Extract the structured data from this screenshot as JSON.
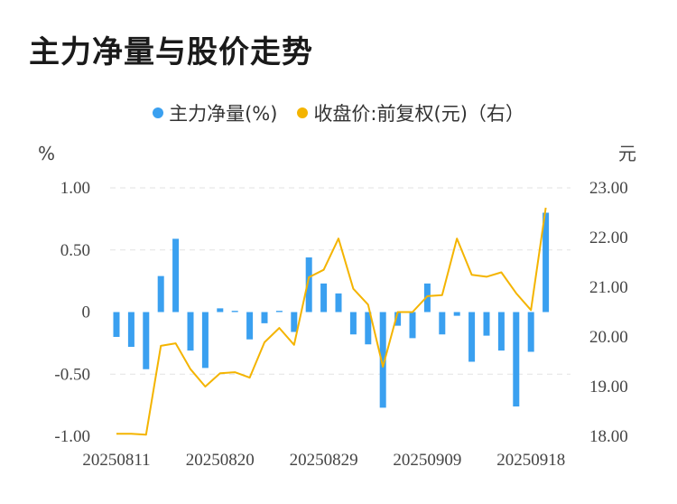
{
  "title": "主力净量与股价走势",
  "legend": {
    "series1": "主力净量(%)",
    "series2": "收盘价:前复权(元)（右）"
  },
  "colors": {
    "bar": "#3aa0f0",
    "line": "#f4b400",
    "grid": "#e2e2e2",
    "text": "#444444"
  },
  "chart_data": {
    "type": "bar+line",
    "title": "主力净量与股价走势",
    "y_left_unit": "%",
    "y_right_unit": "元",
    "y_left_ticks": [
      "1.00",
      "0.50",
      "0",
      "-0.50",
      "-1.00"
    ],
    "y_right_ticks": [
      "23.00",
      "22.00",
      "21.00",
      "20.00",
      "19.00",
      "18.00"
    ],
    "x_tick_labels": [
      "20250811",
      "20250820",
      "20250829",
      "20250909",
      "20250918"
    ],
    "x_tick_index": [
      0,
      7,
      14,
      21,
      28
    ],
    "ylim_left": [
      -1.0,
      1.0
    ],
    "ylim_right": [
      18.0,
      23.0
    ],
    "grid": true,
    "legend_position": "top",
    "series": [
      {
        "name": "主力净量(%)",
        "type": "bar",
        "axis": "left",
        "values": [
          -0.2,
          -0.28,
          -0.46,
          0.29,
          0.59,
          -0.31,
          -0.45,
          0.03,
          0.01,
          -0.22,
          -0.09,
          0.01,
          -0.16,
          0.44,
          0.23,
          0.15,
          -0.18,
          -0.26,
          -0.77,
          -0.11,
          -0.21,
          0.23,
          -0.18,
          -0.03,
          -0.4,
          -0.19,
          -0.31,
          -0.76,
          -0.32,
          0.8
        ]
      },
      {
        "name": "收盘价:前复权(元)（右）",
        "type": "line",
        "axis": "right",
        "values": [
          18.05,
          18.05,
          18.03,
          19.82,
          19.87,
          19.35,
          19.0,
          19.27,
          19.29,
          19.18,
          19.89,
          20.18,
          19.84,
          21.2,
          21.35,
          21.98,
          20.97,
          20.65,
          19.4,
          20.5,
          20.5,
          20.82,
          20.84,
          21.98,
          21.25,
          21.21,
          21.3,
          20.88,
          20.54,
          22.6
        ]
      }
    ]
  }
}
